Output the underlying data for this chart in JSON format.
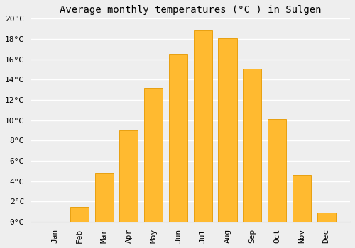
{
  "months": [
    "Jan",
    "Feb",
    "Mar",
    "Apr",
    "May",
    "Jun",
    "Jul",
    "Aug",
    "Sep",
    "Oct",
    "Nov",
    "Dec"
  ],
  "values": [
    0.0,
    1.5,
    4.8,
    9.0,
    13.2,
    16.5,
    18.8,
    18.1,
    15.1,
    10.1,
    4.6,
    0.9
  ],
  "bar_color": "#FFBA30",
  "bar_edge_color": "#E8A010",
  "title": "Average monthly temperatures (°C ) in Sulgen",
  "ylim": [
    0,
    20
  ],
  "yticks": [
    0,
    2,
    4,
    6,
    8,
    10,
    12,
    14,
    16,
    18,
    20
  ],
  "ytick_labels": [
    "0°C",
    "2°C",
    "4°C",
    "6°C",
    "8°C",
    "10°C",
    "12°C",
    "14°C",
    "16°C",
    "18°C",
    "20°C"
  ],
  "background_color": "#eeeeee",
  "plot_bg_color": "#eeeeee",
  "grid_color": "#ffffff",
  "title_fontsize": 10,
  "tick_fontsize": 8,
  "font_family": "monospace",
  "bar_width": 0.75
}
